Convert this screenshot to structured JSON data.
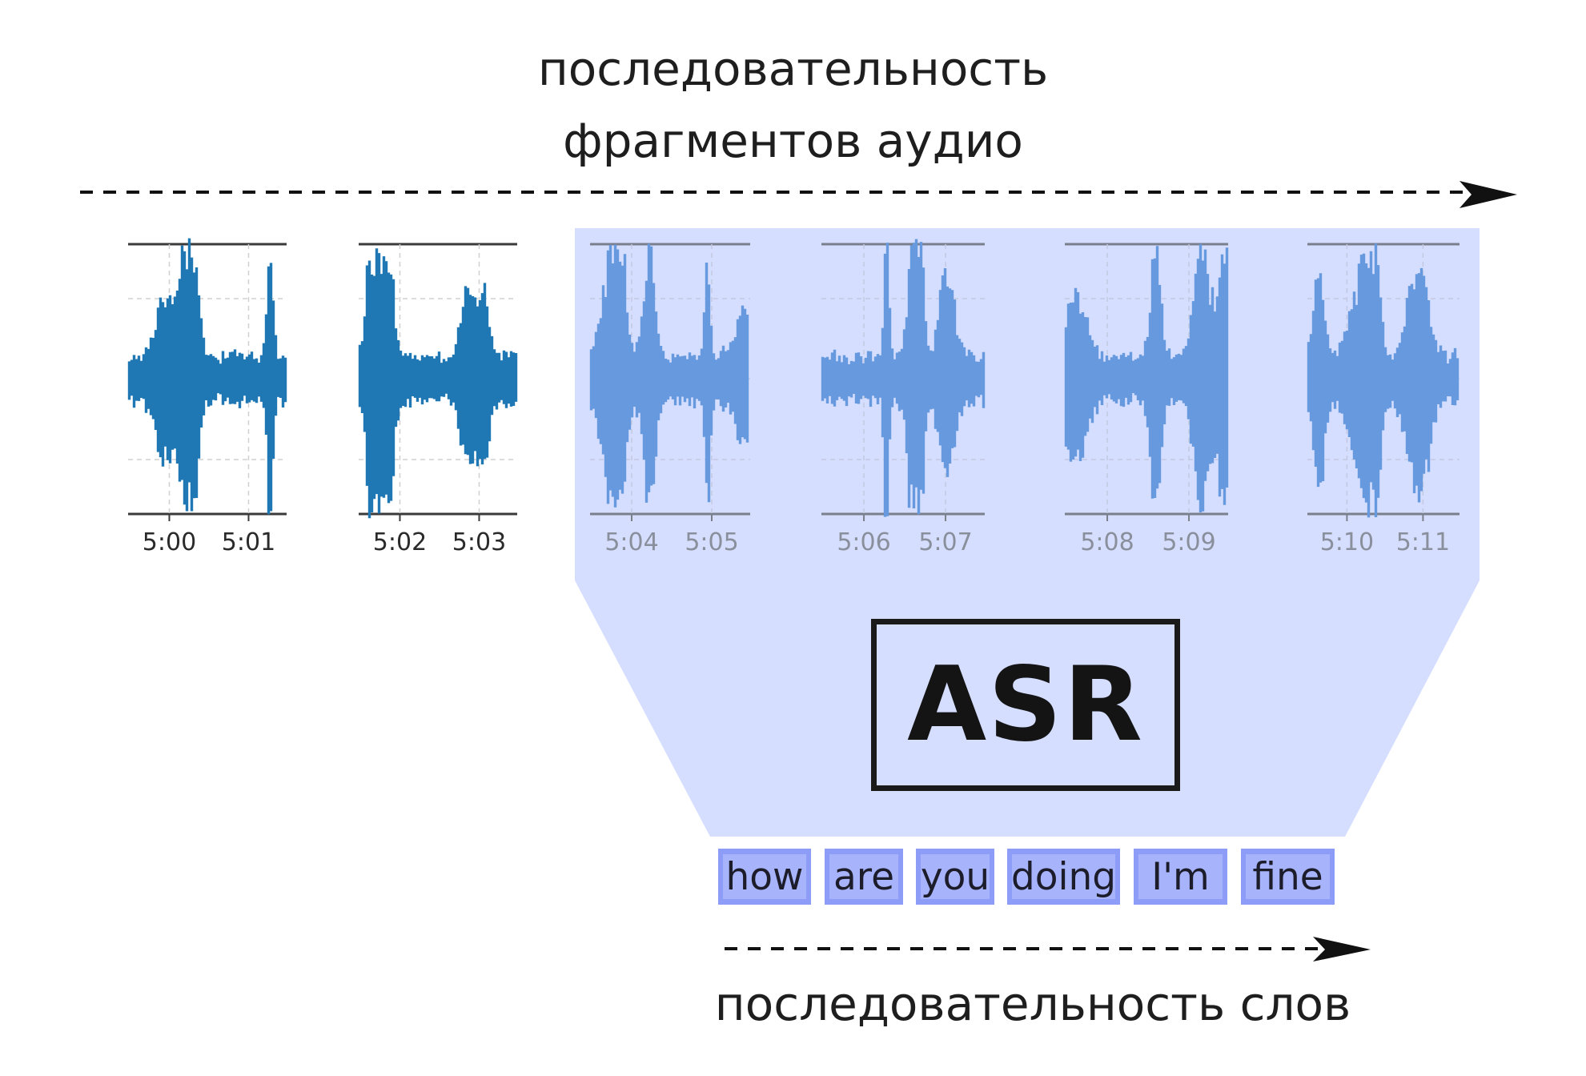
{
  "top_label": {
    "line1": "последовательность",
    "line2": "фрагментов аудио"
  },
  "bottom_label": "последовательность слов",
  "asr_label": "ASR",
  "colors": {
    "waveform_plain": "#1f77b4",
    "waveform_highlighted": "#6699dd",
    "highlight_region": "#d5deff",
    "token_border": "#8c9cf7",
    "token_fill": "#a7b4fb",
    "text": "#1e1e1e"
  },
  "audio_segments": [
    {
      "ticks": [
        "5:00",
        "5:01"
      ],
      "highlighted": false
    },
    {
      "ticks": [
        "5:02",
        "5:03"
      ],
      "highlighted": false
    },
    {
      "ticks": [
        "5:04",
        "5:05"
      ],
      "highlighted": true
    },
    {
      "ticks": [
        "5:06",
        "5:07"
      ],
      "highlighted": true
    },
    {
      "ticks": [
        "5:08",
        "5:09"
      ],
      "highlighted": true
    },
    {
      "ticks": [
        "5:10",
        "5:11"
      ],
      "highlighted": true
    }
  ],
  "words": [
    "how",
    "are",
    "you",
    "doing",
    "I'm",
    "fine"
  ]
}
